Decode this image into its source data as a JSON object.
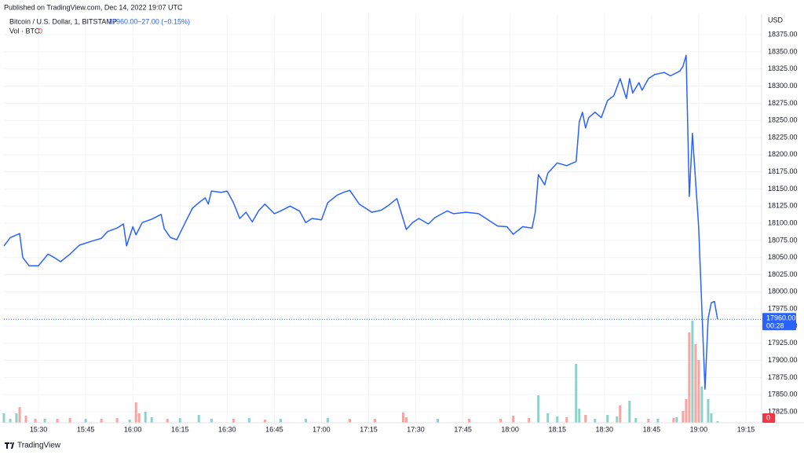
{
  "header": {
    "published": "Published on TradingView.com, Dec 14, 2022 19:07 UTC",
    "symbol": "Bitcoin / U.S. Dollar, 1, BITSTAMP",
    "last": "17960.00",
    "change": "−27.00 (−0.15%)",
    "volume_label": "Vol · BTC",
    "volume_value": "0"
  },
  "chart_data": {
    "type": "line",
    "x": [
      "15:19",
      "15:21",
      "15:24",
      "15:25",
      "15:27",
      "15:30",
      "15:33",
      "15:35",
      "15:37",
      "15:40",
      "15:43",
      "15:47",
      "15:50",
      "15:52",
      "15:55",
      "15:57",
      "15:58",
      "16:00",
      "16:01",
      "16:03",
      "16:06",
      "16:09",
      "16:10",
      "16:12",
      "16:14",
      "16:17",
      "16:19",
      "16:21",
      "16:23",
      "16:24",
      "16:25",
      "16:28",
      "16:30",
      "16:32",
      "16:34",
      "16:36",
      "16:38",
      "16:40",
      "16:42",
      "16:45",
      "16:47",
      "16:50",
      "16:53",
      "16:55",
      "16:57",
      "17:00",
      "17:02",
      "17:05",
      "17:07",
      "17:09",
      "17:12",
      "17:14",
      "17:16",
      "17:19",
      "17:21",
      "17:24",
      "17:27",
      "17:29",
      "17:31",
      "17:34",
      "17:36",
      "17:40",
      "17:42",
      "17:46",
      "17:50",
      "17:54",
      "17:56",
      "17:59",
      "18:01",
      "18:04",
      "18:07",
      "18:08",
      "18:09",
      "18:11",
      "18:12",
      "18:15",
      "18:18",
      "18:21",
      "18:22",
      "18:23",
      "18:24",
      "18:25",
      "18:27",
      "18:29",
      "18:31",
      "18:33",
      "18:35",
      "18:37",
      "18:38",
      "18:39",
      "18:41",
      "18:42",
      "18:44",
      "18:46",
      "18:49",
      "18:51",
      "18:54",
      "18:55",
      "18:56",
      "18:57",
      "18:58",
      "19:00",
      "19:02",
      "19:03",
      "19:04",
      "19:05",
      "19:06"
    ],
    "series": [
      {
        "color": "#2962ff",
        "values": [
          18067,
          18079,
          18085,
          18050,
          18038,
          18038,
          18055,
          18050,
          18044,
          18055,
          18068,
          18074,
          18078,
          18088,
          18093,
          18099,
          18067,
          18095,
          18083,
          18101,
          18106,
          18113,
          18092,
          18079,
          18076,
          18104,
          18122,
          18130,
          18137,
          18128,
          18147,
          18145,
          18147,
          18130,
          18107,
          18116,
          18102,
          18118,
          18128,
          18114,
          18118,
          18125,
          18118,
          18101,
          18107,
          18105,
          18130,
          18141,
          18145,
          18148,
          18128,
          18122,
          18116,
          18119,
          18125,
          18136,
          18091,
          18101,
          18107,
          18099,
          18108,
          18118,
          18114,
          18116,
          18114,
          18102,
          18096,
          18095,
          18084,
          18095,
          18093,
          18116,
          18171,
          18156,
          18173,
          18188,
          18184,
          18190,
          18248,
          18262,
          18239,
          18254,
          18262,
          18254,
          18279,
          18286,
          18311,
          18282,
          18311,
          18290,
          18305,
          18294,
          18311,
          18317,
          18320,
          18315,
          18322,
          18329,
          18345,
          18139,
          18231,
          18093,
          17858,
          17961,
          17984,
          17986,
          17960
        ]
      }
    ],
    "volume": {
      "x": [
        "15:19",
        "15:21",
        "15:23",
        "15:24",
        "15:26",
        "15:29",
        "15:32",
        "15:36",
        "15:40",
        "15:45",
        "15:50",
        "15:55",
        "15:59",
        "16:01",
        "16:02",
        "16:04",
        "16:06",
        "16:11",
        "16:15",
        "16:21",
        "16:25",
        "16:32",
        "16:37",
        "16:42",
        "16:47",
        "16:55",
        "17:02",
        "17:09",
        "17:17",
        "17:26",
        "17:27",
        "17:37",
        "17:47",
        "17:57",
        "18:01",
        "18:06",
        "18:09",
        "18:12",
        "18:15",
        "18:18",
        "18:21",
        "18:22",
        "18:24",
        "18:27",
        "18:31",
        "18:34",
        "18:35",
        "18:38",
        "18:40",
        "18:44",
        "18:47",
        "18:52",
        "18:53",
        "18:55",
        "18:56",
        "18:57",
        "18:58",
        "18:59",
        "19:00",
        "19:01",
        "19:03",
        "19:04",
        "19:06"
      ],
      "values": [
        12,
        5,
        12,
        20,
        9,
        5,
        5,
        5,
        6,
        5,
        5,
        6,
        4,
        26,
        12,
        14,
        7,
        5,
        6,
        10,
        5,
        5,
        6,
        4,
        5,
        5,
        6,
        5,
        5,
        13,
        7,
        5,
        5,
        5,
        9,
        6,
        35,
        12,
        8,
        7,
        75,
        18,
        10,
        5,
        10,
        8,
        22,
        28,
        6,
        5,
        5,
        6,
        7,
        15,
        30,
        115,
        130,
        100,
        80,
        46,
        30,
        12,
        2
      ],
      "colors": [
        "#8fd1c9",
        "#8fd1c9",
        "#8fd1c9",
        "#f5a5a2",
        "#f5a5a2",
        "#f5a5a2",
        "#8fd1c9",
        "#f5a5a2",
        "#f5a5a2",
        "#8fd1c9",
        "#f5a5a2",
        "#f5a5a2",
        "#8fd1c9",
        "#f5a5a2",
        "#f5a5a2",
        "#8fd1c9",
        "#8fd1c9",
        "#f5a5a2",
        "#8fd1c9",
        "#8fd1c9",
        "#8fd1c9",
        "#f5a5a2",
        "#8fd1c9",
        "#f5a5a2",
        "#8fd1c9",
        "#8fd1c9",
        "#8fd1c9",
        "#f5a5a2",
        "#f5a5a2",
        "#f5a5a2",
        "#f5a5a2",
        "#8fd1c9",
        "#f5a5a2",
        "#f5a5a2",
        "#f5a5a2",
        "#f5a5a2",
        "#8fd1c9",
        "#8fd1c9",
        "#8fd1c9",
        "#f5a5a2",
        "#8fd1c9",
        "#8fd1c9",
        "#f5a5a2",
        "#8fd1c9",
        "#8fd1c9",
        "#8fd1c9",
        "#f5a5a2",
        "#8fd1c9",
        "#8fd1c9",
        "#f5a5a2",
        "#8fd1c9",
        "#f5a5a2",
        "#8fd1c9",
        "#f5a5a2",
        "#f5a5a2",
        "#f5a5a2",
        "#8fd1c9",
        "#f5a5a2",
        "#f5a5a2",
        "#8fd1c9",
        "#8fd1c9",
        "#8fd1c9",
        "#8fd1c9"
      ]
    },
    "xlim": [
      "15:19",
      "19:20"
    ],
    "xticks": [
      "15:30",
      "15:45",
      "16:00",
      "16:15",
      "16:30",
      "16:45",
      "17:00",
      "17:15",
      "17:30",
      "17:45",
      "18:00",
      "18:15",
      "18:30",
      "18:45",
      "19:00",
      "19:15"
    ],
    "ylim": [
      17809,
      18405
    ],
    "yticks": [
      {
        "value": 17825,
        "label": "17825.00"
      },
      {
        "value": 17850,
        "label": "17850.00"
      },
      {
        "value": 17875,
        "label": "17875.00"
      },
      {
        "value": 17900,
        "label": "17900.00"
      },
      {
        "value": 17925,
        "label": "17925.00"
      },
      {
        "value": 17950,
        "label": "17950.00"
      },
      {
        "value": 17975,
        "label": "17975.00"
      },
      {
        "value": 18000,
        "label": "18000.00"
      },
      {
        "value": 18025,
        "label": "18025.00"
      },
      {
        "value": 18050,
        "label": "18050.00"
      },
      {
        "value": 18075,
        "label": "18075.00"
      },
      {
        "value": 18100,
        "label": "18100.00"
      },
      {
        "value": 18125,
        "label": "18125.00"
      },
      {
        "value": 18150,
        "label": "18150.00"
      },
      {
        "value": 18175,
        "label": "18175.00"
      },
      {
        "value": 18200,
        "label": "18200.00"
      },
      {
        "value": 18225,
        "label": "18225.00"
      },
      {
        "value": 18250,
        "label": "18250.00"
      },
      {
        "value": 18275,
        "label": "18275.00"
      },
      {
        "value": 18300,
        "label": "18300.00"
      },
      {
        "value": 18325,
        "label": "18325.00"
      },
      {
        "value": 18350,
        "label": "18350.00"
      },
      {
        "value": 18375,
        "label": "18375.00"
      }
    ],
    "y_axis_label": "USD",
    "price_badge": "17960.00",
    "countdown": "00:28",
    "volume_badge": "0",
    "grid": true
  },
  "footer": {
    "brand": "TradingView"
  }
}
